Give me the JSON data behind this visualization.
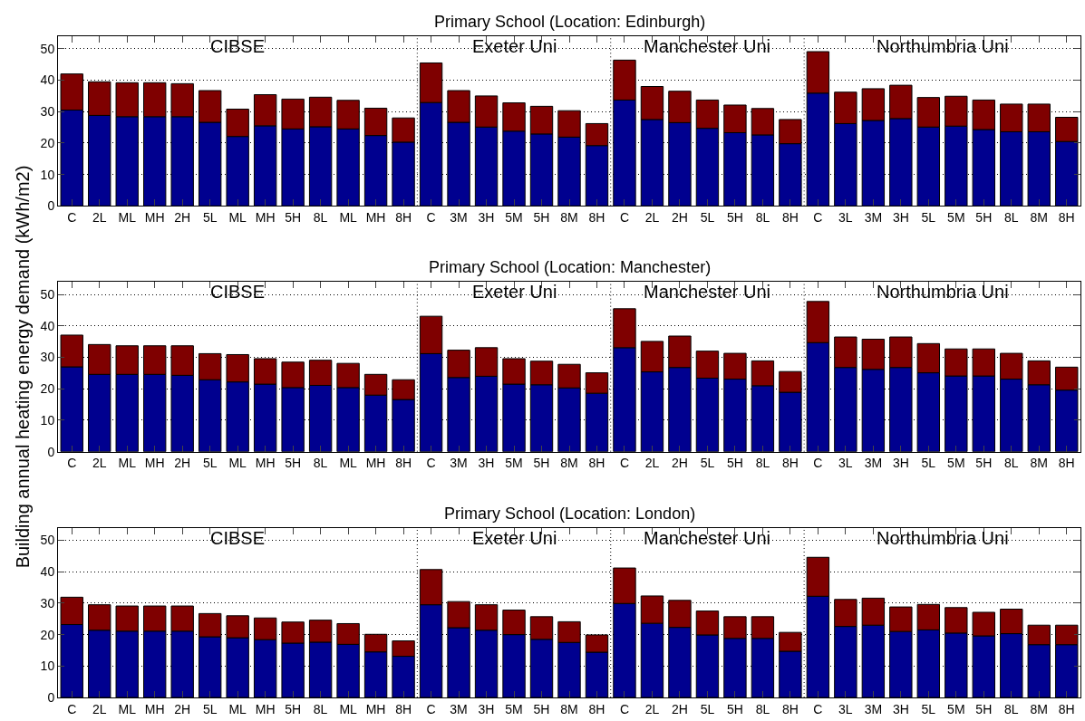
{
  "chart_data": [
    {
      "type": "bar",
      "stacked": true,
      "title": "Primary School (Location: Edinburgh)",
      "categories": [
        "C",
        "2L",
        "ML",
        "MH",
        "2H",
        "5L",
        "ML",
        "MH",
        "5H",
        "8L",
        "ML",
        "MH",
        "8H",
        "C",
        "3M",
        "3H",
        "5M",
        "5H",
        "8M",
        "8H",
        "C",
        "2L",
        "2H",
        "5L",
        "5H",
        "8L",
        "8H",
        "C",
        "3L",
        "3M",
        "3H",
        "5L",
        "5M",
        "5H",
        "8L",
        "8M",
        "8H"
      ],
      "series": [
        {
          "color": "#00008f",
          "values": [
            30.5,
            28.8,
            28.4,
            28.4,
            28.4,
            26.6,
            22.1,
            25.5,
            24.5,
            25.2,
            24.5,
            22.4,
            20.3,
            32.9,
            26.6,
            25.1,
            23.8,
            22.9,
            21.9,
            19.2,
            33.7,
            27.5,
            26.5,
            24.7,
            23.3,
            22.6,
            19.8,
            35.9,
            26.2,
            27.2,
            27.8,
            25.1,
            25.4,
            24.3,
            23.6,
            23.6,
            20.5
          ]
        },
        {
          "color": "#7f0000",
          "values": [
            11.5,
            10.7,
            10.8,
            10.8,
            10.5,
            10.1,
            8.7,
            9.9,
            9.5,
            9.4,
            9.1,
            8.7,
            7.7,
            12.6,
            10.1,
            9.9,
            9.0,
            8.8,
            8.4,
            7.0,
            12.7,
            10.5,
            10.0,
            9.0,
            8.8,
            8.4,
            7.7,
            13.2,
            10.0,
            10.1,
            10.6,
            9.4,
            9.5,
            9.4,
            8.8,
            8.8,
            7.7
          ]
        }
      ],
      "ylim": [
        0,
        54
      ],
      "yticks": [
        0,
        10,
        20,
        30,
        40,
        50
      ],
      "grid": "y",
      "annotations": [
        "CIBSE",
        "Exeter Uni",
        "Manchester Uni",
        "Northumbria Uni"
      ]
    },
    {
      "type": "bar",
      "stacked": true,
      "title": "Primary School (Location: Manchester)",
      "ylabel": "Building annual heating energy demand (kWh/m2)",
      "categories": [
        "C",
        "2L",
        "ML",
        "MH",
        "2H",
        "5L",
        "ML",
        "MH",
        "5H",
        "8L",
        "ML",
        "MH",
        "8H",
        "C",
        "3M",
        "3H",
        "5M",
        "5H",
        "8M",
        "8H",
        "C",
        "2L",
        "2H",
        "5L",
        "5H",
        "8L",
        "8H",
        "C",
        "3L",
        "3M",
        "3H",
        "5L",
        "5M",
        "5H",
        "8L",
        "8M",
        "8H"
      ],
      "series": [
        {
          "color": "#00008f",
          "values": [
            27.0,
            24.6,
            24.6,
            24.6,
            24.3,
            22.9,
            22.2,
            21.5,
            20.4,
            21.1,
            20.4,
            18.0,
            16.6,
            31.2,
            23.6,
            24.0,
            21.5,
            21.3,
            20.3,
            18.6,
            33.1,
            25.4,
            26.8,
            23.4,
            23.1,
            21.0,
            18.9,
            34.7,
            26.8,
            26.2,
            26.8,
            25.1,
            24.1,
            24.1,
            23.1,
            21.3,
            19.6
          ]
        },
        {
          "color": "#7f0000",
          "values": [
            10.1,
            9.5,
            9.1,
            9.1,
            9.4,
            8.3,
            8.7,
            8.1,
            8.1,
            8.0,
            7.7,
            6.6,
            6.3,
            11.9,
            8.7,
            9.1,
            8.1,
            7.5,
            7.5,
            6.5,
            12.4,
            9.7,
            10.0,
            8.6,
            8.2,
            7.9,
            6.6,
            13.1,
            9.7,
            9.6,
            9.7,
            9.3,
            8.6,
            8.6,
            8.2,
            7.6,
            7.3
          ]
        }
      ],
      "ylim": [
        0,
        54
      ],
      "yticks": [
        0,
        10,
        20,
        30,
        40,
        50
      ],
      "grid": "y",
      "annotations": [
        "CIBSE",
        "Exeter Uni",
        "Manchester Uni",
        "Northumbria Uni"
      ]
    },
    {
      "type": "bar",
      "stacked": true,
      "title": "Primary School (Location: London)",
      "categories": [
        "C",
        "2L",
        "ML",
        "MH",
        "2H",
        "5L",
        "ML",
        "MH",
        "5H",
        "8L",
        "ML",
        "MH",
        "8H",
        "C",
        "3M",
        "3H",
        "5M",
        "5H",
        "8M",
        "8H",
        "C",
        "2L",
        "2H",
        "5L",
        "5H",
        "8L",
        "8H",
        "C",
        "3L",
        "3M",
        "3H",
        "5L",
        "5M",
        "5H",
        "8L",
        "8M",
        "8H"
      ],
      "series": [
        {
          "color": "#00008f",
          "values": [
            23.2,
            21.4,
            21.1,
            21.1,
            21.1,
            19.3,
            19.0,
            18.4,
            17.3,
            17.6,
            16.9,
            14.5,
            13.1,
            29.5,
            22.2,
            21.4,
            20.0,
            18.5,
            17.5,
            14.4,
            29.9,
            23.6,
            22.3,
            19.9,
            18.8,
            18.8,
            14.7,
            32.2,
            22.6,
            23.0,
            21.0,
            21.5,
            20.5,
            19.6,
            20.3,
            16.8,
            16.8
          ]
        },
        {
          "color": "#7f0000",
          "values": [
            8.7,
            8.1,
            8.0,
            8.0,
            8.0,
            7.4,
            7.0,
            6.9,
            6.7,
            7.0,
            6.6,
            5.6,
            4.9,
            11.2,
            8.3,
            8.1,
            7.8,
            7.2,
            6.6,
            5.5,
            11.3,
            8.7,
            8.6,
            7.6,
            6.9,
            6.9,
            6.0,
            12.4,
            8.6,
            8.6,
            7.8,
            8.1,
            8.1,
            7.5,
            7.8,
            6.2,
            6.2
          ]
        }
      ],
      "ylim": [
        0,
        54
      ],
      "yticks": [
        0,
        10,
        20,
        30,
        40,
        50
      ],
      "grid": "y",
      "annotations": [
        "CIBSE",
        "Exeter Uni",
        "Manchester Uni",
        "Northumbria Uni"
      ]
    }
  ]
}
